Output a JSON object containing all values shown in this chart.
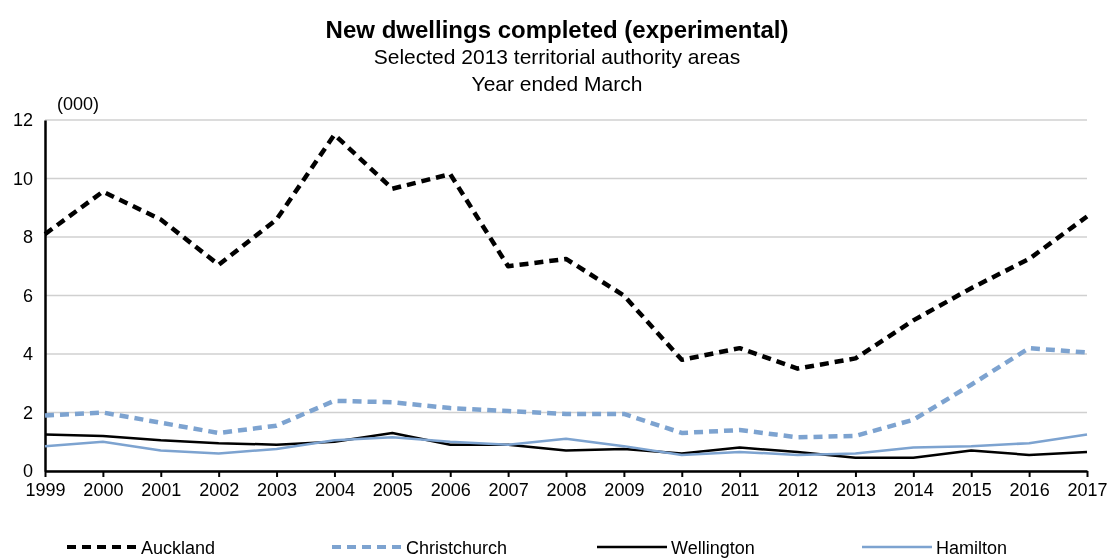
{
  "chart_data": {
    "type": "line",
    "title": "New dwellings completed (experimental)",
    "subtitle": "Selected 2013 territorial authority areas\nYear ended March",
    "ylabel": "(000)",
    "x": [
      1999,
      2000,
      2001,
      2002,
      2003,
      2004,
      2005,
      2006,
      2007,
      2008,
      2009,
      2010,
      2011,
      2012,
      2013,
      2014,
      2015,
      2016,
      2017
    ],
    "xlim": [
      1999,
      2017
    ],
    "xticks": [
      1999,
      2000,
      2001,
      2002,
      2003,
      2004,
      2005,
      2006,
      2007,
      2008,
      2009,
      2010,
      2011,
      2012,
      2013,
      2014,
      2015,
      2016,
      2017
    ],
    "ylim": [
      0,
      12
    ],
    "yticks": [
      0,
      2,
      4,
      6,
      8,
      10,
      12
    ],
    "grid": "y",
    "legend": "bottom",
    "marker": "none",
    "series": [
      {
        "name": "Auckland",
        "color": "#000000",
        "line_style": "dashed",
        "values": [
          8.1,
          9.55,
          8.6,
          7.05,
          8.6,
          11.5,
          9.65,
          10.15,
          7.0,
          7.25,
          6.0,
          3.8,
          4.2,
          3.5,
          3.85,
          5.15,
          6.25,
          7.25,
          8.7
        ]
      },
      {
        "name": "Christchurch",
        "color": "#7da3d0",
        "line_style": "dashed",
        "values": [
          1.9,
          2.0,
          1.65,
          1.3,
          1.55,
          2.4,
          2.35,
          2.15,
          2.05,
          1.95,
          1.95,
          1.3,
          1.4,
          1.15,
          1.2,
          1.75,
          2.95,
          4.2,
          4.05
        ]
      },
      {
        "name": "Wellington",
        "color": "#000000",
        "line_style": "solid",
        "values": [
          1.25,
          1.2,
          1.05,
          0.95,
          0.9,
          1.0,
          1.3,
          0.9,
          0.9,
          0.7,
          0.75,
          0.6,
          0.8,
          0.65,
          0.45,
          0.45,
          0.7,
          0.55,
          0.65
        ]
      },
      {
        "name": "Hamilton",
        "color": "#7da3d0",
        "line_style": "solid",
        "values": [
          0.85,
          1.0,
          0.7,
          0.6,
          0.75,
          1.05,
          1.15,
          1.0,
          0.9,
          1.1,
          0.85,
          0.55,
          0.65,
          0.55,
          0.6,
          0.8,
          0.85,
          0.95,
          1.25
        ]
      }
    ]
  }
}
